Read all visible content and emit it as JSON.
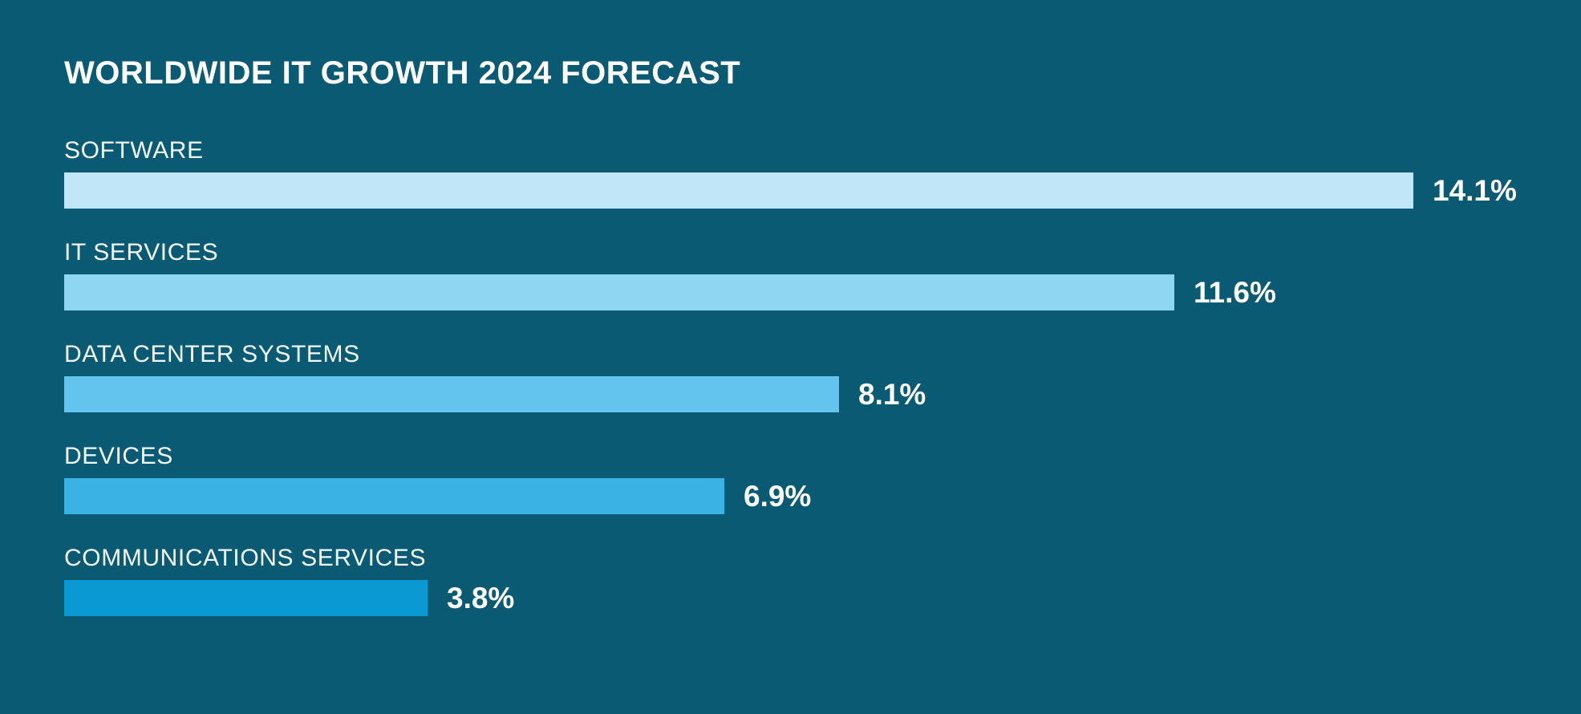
{
  "page": {
    "background_color": "#0a5a74",
    "text_color": "#ffffff"
  },
  "header": {
    "title": "WORLDWIDE IT GROWTH 2024 FORECAST"
  },
  "chart_data": {
    "type": "bar",
    "orientation": "horizontal",
    "title": "WORLDWIDE IT GROWTH 2024 FORECAST",
    "categories": [
      "SOFTWARE",
      "IT SERVICES",
      "DATA CENTER SYSTEMS",
      "DEVICES",
      "COMMUNICATIONS SERVICES"
    ],
    "values": [
      14.1,
      11.6,
      8.1,
      6.9,
      3.8
    ],
    "value_labels": [
      "14.1%",
      "11.6%",
      "8.1%",
      "6.9%",
      "3.8%"
    ],
    "bar_colors": [
      "#c1e6f8",
      "#8fd6f3",
      "#63c5ed",
      "#3ab3e4",
      "#0b99d3"
    ],
    "unit": "%",
    "xlim": [
      0,
      14.1
    ],
    "grid": false,
    "legend": false,
    "value_label_position": "right-of-bar"
  }
}
